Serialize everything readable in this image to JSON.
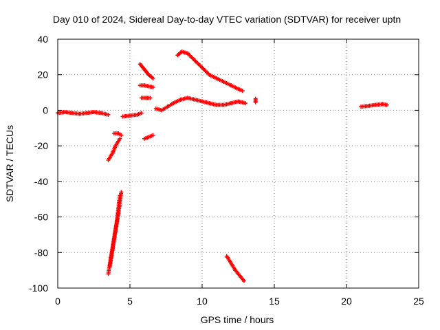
{
  "chart_data": {
    "type": "scatter",
    "title": "Day 010 of 2024, Sidereal Day-to-day VTEC variation (SDTVAR) for receiver uptn",
    "xlabel": "GPS time / hours",
    "ylabel": "SDTVAR / TECUs",
    "xlim": [
      0,
      25
    ],
    "ylim": [
      -100,
      40
    ],
    "x_ticks": [
      0,
      5,
      10,
      15,
      20,
      25
    ],
    "y_ticks": [
      -100,
      -80,
      -60,
      -40,
      -20,
      0,
      20,
      40
    ],
    "x_tick_labels": [
      "0",
      "5",
      "10",
      "15",
      "20",
      "25"
    ],
    "y_tick_labels": [
      "-100",
      "-80",
      "-60",
      "-40",
      "-20",
      "0",
      "20",
      "40"
    ],
    "grid": true,
    "marker": "+",
    "series": [
      {
        "name": "SDTVAR",
        "color": "#ff0000",
        "tracks": [
          {
            "x": [
              0.0,
              0.5,
              1.0,
              1.5,
              2.0,
              2.5,
              3.0,
              3.5
            ],
            "y": [
              -1.5,
              -1.0,
              -1.5,
              -2.0,
              -1.5,
              -1.0,
              -1.5,
              -2.5
            ]
          },
          {
            "x": [
              4.5,
              5.0,
              5.5,
              5.8
            ],
            "y": [
              -3.5,
              -3.0,
              -2.5,
              -1.5
            ]
          },
          {
            "x": [
              3.5,
              3.8,
              4.0,
              4.3
            ],
            "y": [
              -28,
              -24,
              -20,
              -16
            ]
          },
          {
            "x": [
              3.9,
              4.2,
              4.4
            ],
            "y": [
              -13,
              -13,
              -14
            ]
          },
          {
            "x": [
              3.5,
              3.7,
              3.9,
              4.1,
              4.3
            ],
            "y": [
              -92,
              -82,
              -72,
              -62,
              -48
            ]
          },
          {
            "x": [
              3.6,
              3.8,
              4.0,
              4.2,
              4.4
            ],
            "y": [
              -88,
              -78,
              -68,
              -58,
              -46
            ]
          },
          {
            "x": [
              5.7,
              5.9,
              6.1,
              6.3,
              6.6
            ],
            "y": [
              26,
              24,
              22,
              20,
              18
            ]
          },
          {
            "x": [
              5.7,
              6.0,
              6.3,
              6.6
            ],
            "y": [
              14,
              14,
              13.5,
              13
            ]
          },
          {
            "x": [
              5.8,
              6.1,
              6.4
            ],
            "y": [
              7,
              7,
              7
            ]
          },
          {
            "x": [
              6.0,
              6.3,
              6.6
            ],
            "y": [
              -16,
              -15,
              -14
            ]
          },
          {
            "x": [
              6.8,
              7.2,
              7.6,
              8.0,
              8.5,
              9.0,
              9.5,
              10.0,
              10.5,
              11.0,
              11.5,
              12.0,
              12.5,
              13.0
            ],
            "y": [
              1,
              0,
              2,
              4,
              6,
              7,
              6,
              5,
              4,
              3,
              3,
              4,
              5,
              4
            ]
          },
          {
            "x": [
              8.3,
              8.6,
              9.0,
              9.5,
              10.0,
              10.5,
              11.0,
              11.5,
              12.0,
              12.5,
              12.8
            ],
            "y": [
              31,
              33,
              32,
              28,
              24,
              20,
              18,
              16,
              14,
              12,
              11
            ]
          },
          {
            "x": [
              13.7,
              13.7
            ],
            "y": [
              4.5,
              6.5
            ]
          },
          {
            "x": [
              11.7,
              12.0,
              12.3,
              12.6,
              12.9
            ],
            "y": [
              -82,
              -86,
              -90,
              -93,
              -96
            ]
          },
          {
            "x": [
              21.0,
              21.5,
              22.0,
              22.5,
              22.8
            ],
            "y": [
              2,
              2.5,
              3,
              3.5,
              3
            ]
          }
        ]
      }
    ]
  }
}
